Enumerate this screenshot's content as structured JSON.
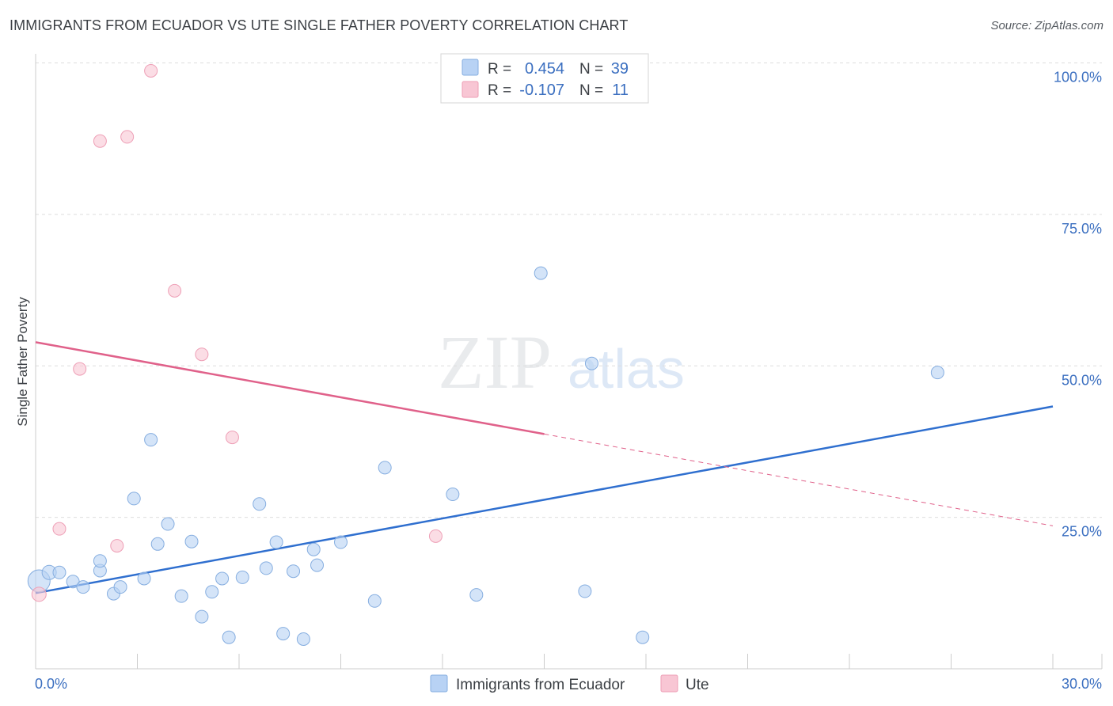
{
  "title": "IMMIGRANTS FROM ECUADOR VS UTE SINGLE FATHER POVERTY CORRELATION CHART",
  "source": "Source: ZipAtlas.com",
  "watermark": {
    "zip": "ZIP",
    "atlas": "atlas"
  },
  "colors": {
    "blue_fill": "#b8d2f4",
    "blue_stroke": "#86aee0",
    "blue_line": "#2f6fcf",
    "pink_fill": "#f8c6d4",
    "pink_stroke": "#ee9fb6",
    "pink_line": "#e0618a",
    "tick_label": "#3b6fc0",
    "grid": "#dddddd"
  },
  "legend": {
    "rows": [
      {
        "r_label": "R =",
        "r_value": "0.454",
        "n_label": "N =",
        "n_value": "39",
        "series": "blue"
      },
      {
        "r_label": "R =",
        "r_value": "-0.107",
        "n_label": "N =",
        "n_value": "11",
        "series": "pink"
      }
    ]
  },
  "bottom_legend": [
    {
      "label": "Immigrants from Ecuador",
      "series": "blue"
    },
    {
      "label": "Ute",
      "series": "pink"
    }
  ],
  "chart_data": {
    "type": "scatter",
    "title": "IMMIGRANTS FROM ECUADOR VS UTE SINGLE FATHER POVERTY CORRELATION CHART",
    "xlabel": "",
    "ylabel": "Single Father Poverty",
    "xlim": [
      0,
      30
    ],
    "ylim": [
      0,
      100
    ],
    "x_tick_labels": [
      "0.0%",
      "30.0%"
    ],
    "y_ticks": [
      25,
      50,
      75,
      100
    ],
    "y_tick_labels": [
      "25.0%",
      "50.0%",
      "75.0%",
      "100.0%"
    ],
    "legend_position": "top-center",
    "series": [
      {
        "name": "Immigrants from Ecuador",
        "color": "blue",
        "r": 0.454,
        "n": 39,
        "points": [
          [
            0.1,
            14.5,
            14
          ],
          [
            0.4,
            15.9,
            9
          ],
          [
            0.7,
            15.9,
            8
          ],
          [
            1.1,
            14.4,
            8
          ],
          [
            1.4,
            13.5,
            8
          ],
          [
            1.9,
            16.2,
            8
          ],
          [
            1.9,
            17.8,
            8
          ],
          [
            2.3,
            12.4,
            8
          ],
          [
            2.5,
            13.5,
            8
          ],
          [
            2.9,
            28.1,
            8
          ],
          [
            3.2,
            14.9,
            8
          ],
          [
            3.4,
            37.8,
            8
          ],
          [
            3.6,
            20.6,
            8
          ],
          [
            3.9,
            23.9,
            8
          ],
          [
            4.3,
            12.0,
            8
          ],
          [
            4.6,
            21.0,
            8
          ],
          [
            4.9,
            8.6,
            8
          ],
          [
            5.2,
            12.7,
            8
          ],
          [
            5.5,
            14.9,
            8
          ],
          [
            5.7,
            5.2,
            8
          ],
          [
            6.1,
            15.1,
            8
          ],
          [
            6.6,
            27.2,
            8
          ],
          [
            6.8,
            16.6,
            8
          ],
          [
            7.1,
            20.9,
            8
          ],
          [
            7.3,
            5.8,
            8
          ],
          [
            7.6,
            16.1,
            8
          ],
          [
            7.9,
            4.9,
            8
          ],
          [
            8.2,
            19.7,
            8
          ],
          [
            8.3,
            17.1,
            8
          ],
          [
            9.0,
            20.9,
            8
          ],
          [
            10.0,
            11.2,
            8
          ],
          [
            10.3,
            33.2,
            8
          ],
          [
            12.3,
            28.8,
            8
          ],
          [
            13.0,
            12.2,
            8
          ],
          [
            14.9,
            65.3,
            8
          ],
          [
            16.2,
            12.8,
            8
          ],
          [
            16.4,
            50.4,
            8
          ],
          [
            17.9,
            5.2,
            8
          ],
          [
            26.6,
            48.9,
            8
          ]
        ],
        "trend": {
          "x0": 0,
          "y0": 12.5,
          "x1": 30,
          "y1": 43.3,
          "dashed_from_x": null
        }
      },
      {
        "name": "Ute",
        "color": "pink",
        "r": -0.107,
        "n": 11,
        "points": [
          [
            0.1,
            12.3,
            9
          ],
          [
            0.7,
            23.1,
            8
          ],
          [
            1.3,
            49.5,
            8
          ],
          [
            1.9,
            87.1,
            8
          ],
          [
            2.4,
            20.3,
            8
          ],
          [
            2.7,
            87.8,
            8
          ],
          [
            3.4,
            98.7,
            8
          ],
          [
            4.1,
            62.4,
            8
          ],
          [
            4.9,
            51.9,
            8
          ],
          [
            5.8,
            38.2,
            8
          ],
          [
            11.8,
            21.9,
            8
          ]
        ],
        "trend": {
          "x0": 0,
          "y0": 53.9,
          "x1": 30,
          "y1": 23.6,
          "dashed_from_x": 15.0
        }
      }
    ]
  }
}
